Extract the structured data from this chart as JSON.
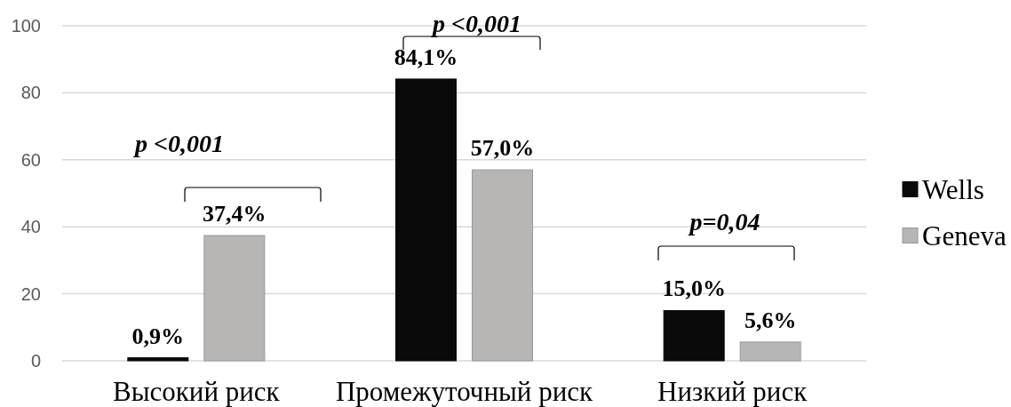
{
  "chart_data": {
    "type": "bar",
    "categories": [
      "Высокий риск",
      "Промежуточный риск",
      "Низкий риск"
    ],
    "series": [
      {
        "name": "Wells",
        "color": "#0a0a0a",
        "values": [
          0.9,
          84.1,
          15.0
        ],
        "value_labels": [
          "0,9%",
          "84,1%",
          "15,0%"
        ]
      },
      {
        "name": "Geneva",
        "color": "#b8b5b5",
        "values": [
          37.4,
          57.0,
          5.6
        ],
        "value_labels": [
          "37,4%",
          "57,0%",
          "5,6%"
        ]
      }
    ],
    "ylim": [
      0,
      100
    ],
    "yticks": [
      0,
      20,
      40,
      60,
      80,
      100
    ],
    "grid": "y",
    "legend": "right",
    "annotations": [
      "p <0,001",
      "p <0,001",
      "p=0,04"
    ]
  }
}
